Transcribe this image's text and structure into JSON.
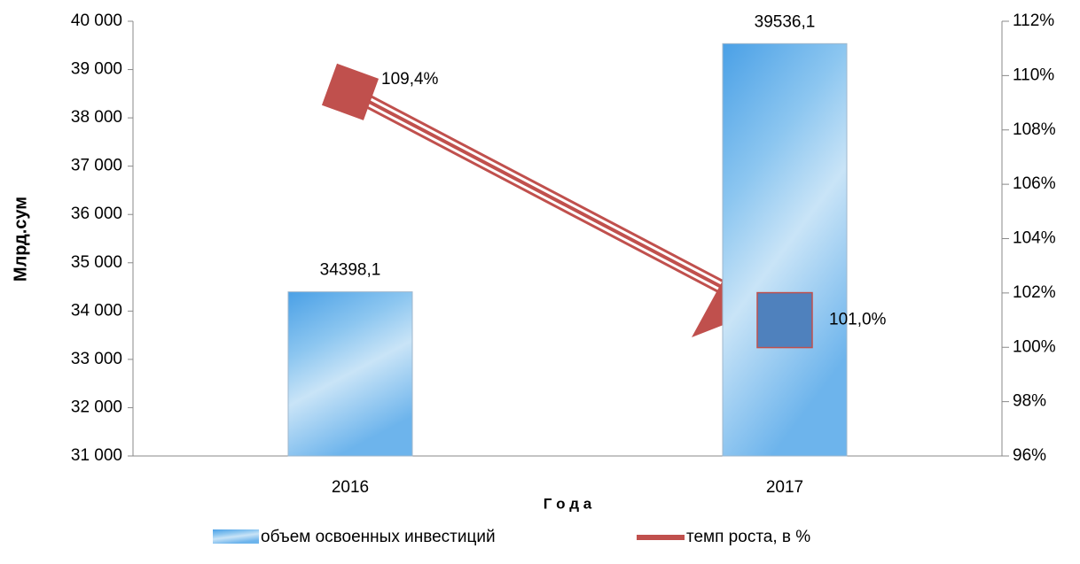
{
  "chart_data": {
    "type": "bar_line",
    "y_label": "Млрд.сум",
    "x_label": "Г о д а",
    "categories": [
      "2016",
      "2017"
    ],
    "series": [
      {
        "name": "объем освоенных инвестиций",
        "type": "bar",
        "color": "#6fb0e8",
        "values": [
          34398.1,
          39536.1
        ],
        "value_labels": [
          "34398,1",
          "39536,1"
        ]
      },
      {
        "name": "темп роста, в %",
        "type": "line",
        "axis": "y2",
        "color": "#c0504d",
        "marker_colors": [
          "#c0504d",
          "#4f81bd"
        ],
        "values": [
          109.4,
          101.0
        ],
        "value_labels": [
          "109,4%",
          "101,0%"
        ]
      }
    ],
    "ylim": [
      31000,
      40000
    ],
    "yticks": [
      {
        "value": 31000,
        "label": "31 000"
      },
      {
        "value": 32000,
        "label": "32 000"
      },
      {
        "value": 33000,
        "label": "33 000"
      },
      {
        "value": 34000,
        "label": "34 000"
      },
      {
        "value": 35000,
        "label": "35 000"
      },
      {
        "value": 36000,
        "label": "36 000"
      },
      {
        "value": 37000,
        "label": "37 000"
      },
      {
        "value": 38000,
        "label": "38 000"
      },
      {
        "value": 39000,
        "label": "39 000"
      },
      {
        "value": 40000,
        "label": "40 000"
      }
    ],
    "y2lim": [
      96,
      112
    ],
    "y2ticks": [
      {
        "value": 96,
        "label": "96%"
      },
      {
        "value": 98,
        "label": "98%"
      },
      {
        "value": 100,
        "label": "100%"
      },
      {
        "value": 102,
        "label": "102%"
      },
      {
        "value": 104,
        "label": "104%"
      },
      {
        "value": 106,
        "label": "106%"
      },
      {
        "value": 108,
        "label": "108%"
      },
      {
        "value": 110,
        "label": "110%"
      },
      {
        "value": 112,
        "label": "112%"
      }
    ]
  }
}
